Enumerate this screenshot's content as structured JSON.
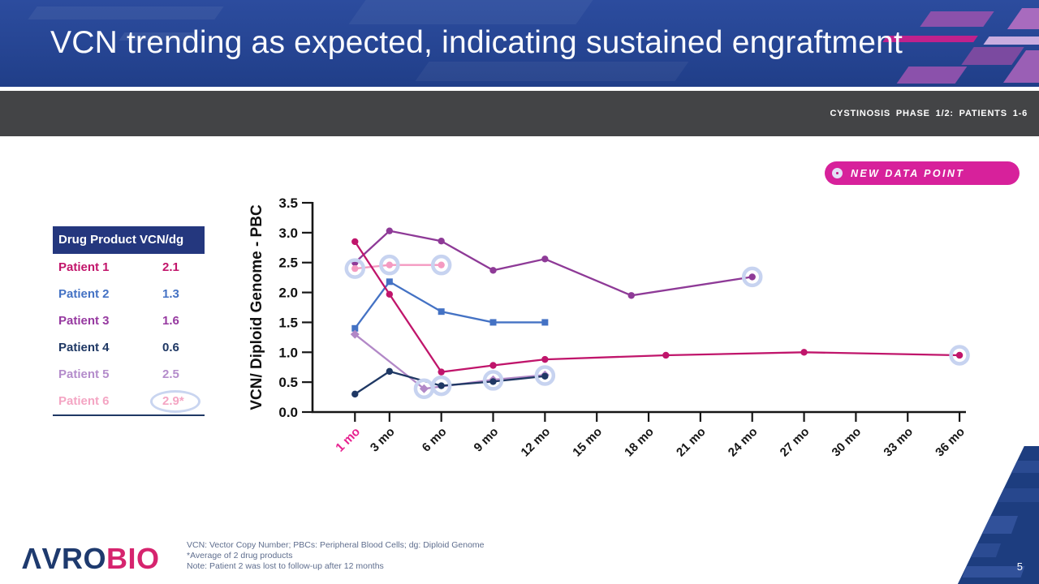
{
  "header": {
    "title": "VCN trending as expected, indicating sustained engraftment"
  },
  "subheader": {
    "label": "CYSTINOSIS PHASE 1/2: PATIENTS 1-6"
  },
  "badge": {
    "label": "NEW DATA POINT",
    "color": "#D7219B"
  },
  "table": {
    "header": "Drug Product VCN/dg",
    "rows": [
      {
        "label": "Patient 1",
        "value": "2.1",
        "color": "#C2156B",
        "circled": false
      },
      {
        "label": "Patient 2",
        "value": "1.3",
        "color": "#4472C4",
        "circled": false
      },
      {
        "label": "Patient 3",
        "value": "1.6",
        "color": "#9639A0",
        "circled": false
      },
      {
        "label": "Patient 4",
        "value": "0.6",
        "color": "#1F3864",
        "circled": false
      },
      {
        "label": "Patient 5",
        "value": "2.5",
        "color": "#B48CCB",
        "circled": false
      },
      {
        "label": "Patient 6",
        "value": "2.9*",
        "color": "#F4A5C3",
        "circled": true
      }
    ]
  },
  "chart_data": {
    "type": "line",
    "title": "",
    "xlabel": "",
    "ylabel": "VCN/ Diploid Genome - PBC",
    "ylim": [
      0,
      3.5
    ],
    "yticks": [
      0,
      0.5,
      1,
      1.5,
      2,
      2.5,
      3,
      3.5
    ],
    "xticks": [
      {
        "m": 1,
        "label": "1 mo",
        "color": "#E7218F"
      },
      {
        "m": 3,
        "label": "3 mo"
      },
      {
        "m": 6,
        "label": "6 mo"
      },
      {
        "m": 9,
        "label": "9 mo"
      },
      {
        "m": 12,
        "label": "12 mo"
      },
      {
        "m": 15,
        "label": "15 mo"
      },
      {
        "m": 18,
        "label": "18 mo"
      },
      {
        "m": 21,
        "label": "21 mo"
      },
      {
        "m": 24,
        "label": "24 mo"
      },
      {
        "m": 27,
        "label": "27 mo"
      },
      {
        "m": 30,
        "label": "30 mo"
      },
      {
        "m": 33,
        "label": "33 mo"
      },
      {
        "m": 36,
        "label": "36 mo"
      }
    ],
    "series": [
      {
        "name": "Patient 3",
        "color": "#8E3A97",
        "marker": "circle",
        "points": [
          [
            1,
            2.5
          ],
          [
            3,
            3.03
          ],
          [
            6,
            2.86
          ],
          [
            9,
            2.37
          ],
          [
            12,
            2.56
          ],
          [
            17,
            1.95
          ],
          [
            24,
            2.26
          ]
        ]
      },
      {
        "name": "Patient 6",
        "color": "#F49AC1",
        "marker": "circle",
        "points": [
          [
            1,
            2.4
          ],
          [
            3,
            2.46
          ],
          [
            6,
            2.46
          ]
        ]
      },
      {
        "name": "Patient 2",
        "color": "#4472C4",
        "marker": "square",
        "points": [
          [
            1,
            1.4
          ],
          [
            3,
            2.18
          ],
          [
            6,
            1.68
          ],
          [
            9,
            1.5
          ],
          [
            12,
            1.5
          ]
        ]
      },
      {
        "name": "Patient 5",
        "color": "#B288C7",
        "marker": "diamond",
        "points": [
          [
            1,
            1.3
          ],
          [
            5,
            0.39
          ],
          [
            9,
            0.54
          ],
          [
            12,
            0.62
          ]
        ]
      },
      {
        "name": "Patient 4",
        "color": "#1F3864",
        "marker": "circle",
        "points": [
          [
            1,
            0.3
          ],
          [
            3,
            0.68
          ],
          [
            6,
            0.44
          ],
          [
            9,
            0.51
          ],
          [
            12,
            0.6
          ]
        ]
      },
      {
        "name": "Patient 1",
        "color": "#C0156B",
        "marker": "circle",
        "points": [
          [
            1,
            2.85
          ],
          [
            3,
            1.97
          ],
          [
            6,
            0.67
          ],
          [
            9,
            0.78
          ],
          [
            12,
            0.88
          ],
          [
            19,
            0.95
          ],
          [
            27,
            1.0
          ],
          [
            36,
            0.95
          ]
        ]
      }
    ],
    "new_data_rings": [
      [
        1,
        2.4
      ],
      [
        3,
        2.46
      ],
      [
        6,
        2.46
      ],
      [
        5,
        0.39
      ],
      [
        6,
        0.44
      ],
      [
        9,
        0.53
      ],
      [
        12,
        0.61
      ],
      [
        24,
        2.26
      ],
      [
        36,
        0.95
      ]
    ],
    "ring_color": "#C7D3F0",
    "legend_position": "none",
    "grid": false
  },
  "footnotes": {
    "lines": [
      "VCN: Vector Copy Number; PBCs: Peripheral Blood Cells; dg: Diploid Genome",
      "*Average of 2 drug products",
      "Note: Patient 2 was lost to follow-up after 12 months"
    ]
  },
  "logo": {
    "wordmark_navy": "ΛVRO",
    "wordmark_pink": "BIO"
  },
  "page_number": "5"
}
